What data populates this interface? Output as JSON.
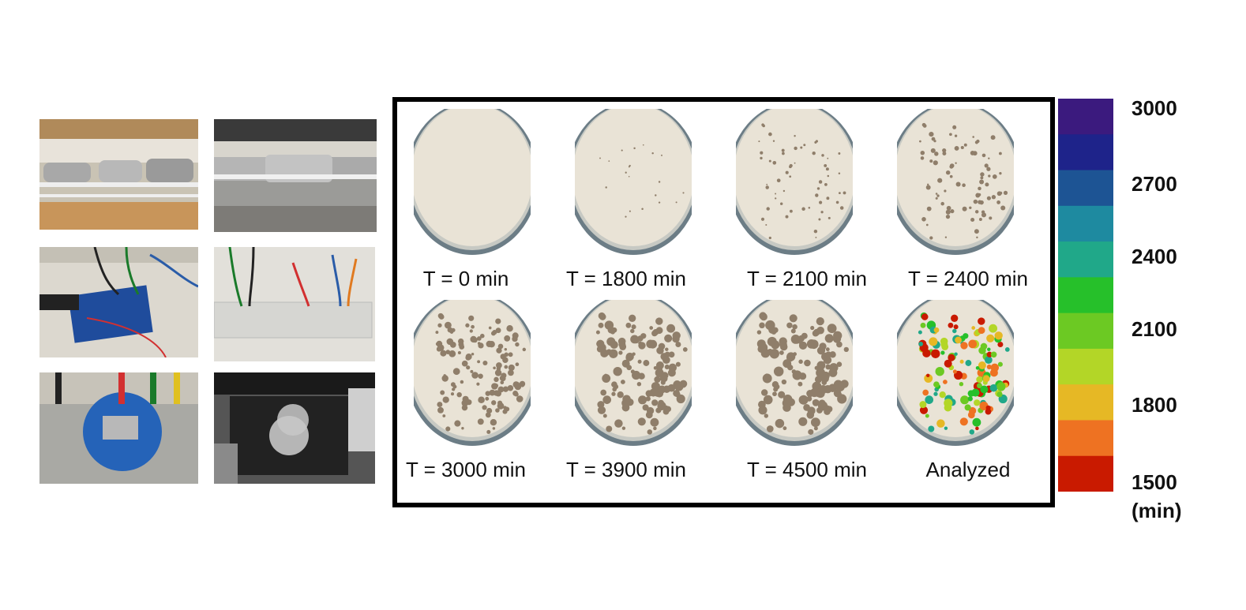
{
  "photos": [
    {
      "name": "scanners-photo-1",
      "icon": "scanner-bench-photo"
    },
    {
      "name": "scanners-photo-2",
      "icon": "scanner-bench-photo"
    },
    {
      "name": "arduino-board-photo",
      "icon": "circuit-board-photo"
    },
    {
      "name": "breadboard-photo",
      "icon": "breadboard-wiring-photo"
    },
    {
      "name": "clock-module-photo",
      "icon": "rtc-module-photo"
    },
    {
      "name": "petri-dish-scanner-photo",
      "icon": "scanner-with-dishes-photo"
    }
  ],
  "plates": [
    {
      "label": "T = 0 min",
      "colonies": 0
    },
    {
      "label": "T = 1800 min",
      "colonies": 20
    },
    {
      "label": "T = 2100 min",
      "colonies": 60
    },
    {
      "label": "T = 2400 min",
      "colonies": 85
    },
    {
      "label": "T = 3000 min",
      "colonies": 130
    },
    {
      "label": "T = 3900 min",
      "colonies": 130
    },
    {
      "label": "T = 4500 min",
      "colonies": 130
    },
    {
      "label": "Analyzed",
      "colonies": 130
    }
  ],
  "colorbar": {
    "labels": [
      "3000",
      "2700",
      "2400",
      "2100",
      "1800",
      "1500"
    ],
    "unit": "(min)",
    "range": [
      1500,
      3000
    ],
    "colors": [
      "#3b1a7e",
      "#1e238a",
      "#1d5494",
      "#1e8aa0",
      "#20a889",
      "#26c02a",
      "#6cc923",
      "#b3d627",
      "#e6b825",
      "#ee7222",
      "#c91a00"
    ]
  }
}
